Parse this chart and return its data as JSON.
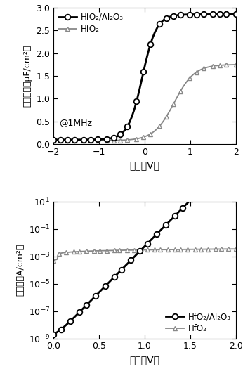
{
  "top": {
    "xlabel": "电压（V）",
    "ylabel": "电容密度（μF/cm²）",
    "xlim": [
      -2,
      2
    ],
    "ylim": [
      0.0,
      3.0
    ],
    "yticks": [
      0.0,
      0.5,
      1.0,
      1.5,
      2.0,
      2.5,
      3.0
    ],
    "xticks": [
      -2,
      -1,
      0,
      1,
      2
    ],
    "annotation": "@1MHz",
    "legend1": "HfO₂/Al₂O₃",
    "legend2": "HfO₂",
    "color1": "#000000",
    "color2": "#888888"
  },
  "bottom": {
    "xlabel": "电压（V）",
    "ylabel": "漏电流（A/cm²）",
    "xlim": [
      0.0,
      2.0
    ],
    "xticks": [
      0.0,
      0.5,
      1.0,
      1.5,
      2.0
    ],
    "legend1": "HfO₂/Al₂O₃",
    "legend2": "HfO₂",
    "color1": "#000000",
    "color2": "#888888"
  }
}
